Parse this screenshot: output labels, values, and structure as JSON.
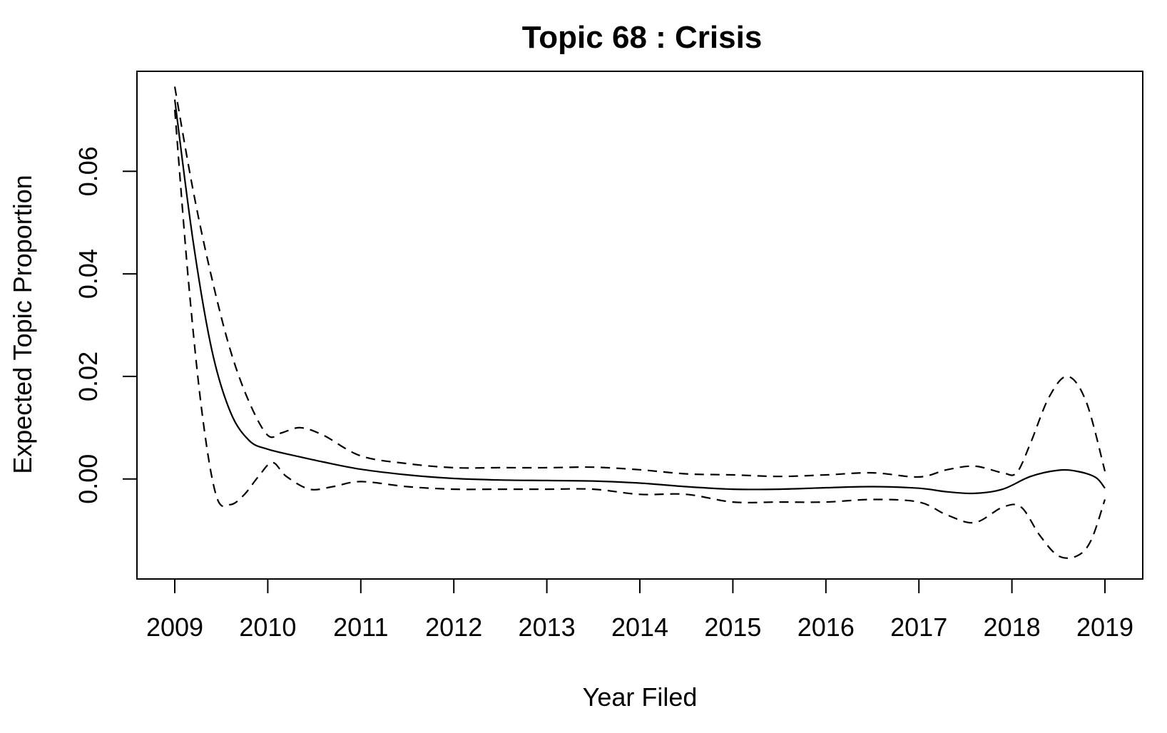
{
  "chart_data": {
    "type": "line",
    "title": "Topic 68 : Crisis",
    "xlabel": "Year Filed",
    "ylabel": "Expected Topic Proportion",
    "xlim": [
      2009,
      2019
    ],
    "ylim": [
      -0.0195,
      0.0795
    ],
    "x_ticks": [
      2009,
      2010,
      2011,
      2012,
      2013,
      2014,
      2015,
      2016,
      2017,
      2018,
      2019
    ],
    "x_tick_labels": [
      "2009",
      "2010",
      "2011",
      "2012",
      "2013",
      "2014",
      "2015",
      "2016",
      "2017",
      "2018",
      "2019"
    ],
    "y_ticks": [
      0.0,
      0.02,
      0.04,
      0.06
    ],
    "y_tick_labels": [
      "0.00",
      "0.02",
      "0.04",
      "0.06"
    ],
    "grid": false,
    "legend": "none",
    "series": [
      {
        "style": "solid",
        "x": [
          2009.0,
          2009.2,
          2009.4,
          2009.6,
          2009.8,
          2010.0,
          2010.3,
          2010.6,
          2011.0,
          2011.5,
          2012.0,
          2012.5,
          2013.0,
          2013.5,
          2014.0,
          2014.5,
          2015.0,
          2015.5,
          2016.0,
          2016.5,
          2017.0,
          2017.3,
          2017.6,
          2017.9,
          2018.2,
          2018.5,
          2018.7,
          2018.9,
          2019.0
        ],
        "values": [
          0.074,
          0.046,
          0.025,
          0.013,
          0.0075,
          0.0058,
          0.0045,
          0.0033,
          0.0019,
          0.0008,
          0.0001,
          -0.0002,
          -0.0003,
          -0.0004,
          -0.0008,
          -0.0015,
          -0.002,
          -0.002,
          -0.0017,
          -0.0015,
          -0.0018,
          -0.0025,
          -0.0028,
          -0.002,
          0.0005,
          0.0017,
          0.0015,
          0.0003,
          -0.0018
        ]
      },
      {
        "style": "dashed",
        "x": [
          2009.0,
          2009.2,
          2009.4,
          2009.6,
          2009.8,
          2010.0,
          2010.15,
          2010.35,
          2010.6,
          2011.0,
          2011.5,
          2012.0,
          2012.5,
          2013.0,
          2013.5,
          2014.0,
          2014.5,
          2015.0,
          2015.5,
          2016.0,
          2016.5,
          2017.0,
          2017.3,
          2017.6,
          2017.9,
          2018.05,
          2018.2,
          2018.4,
          2018.6,
          2018.8,
          2019.0
        ],
        "values": [
          0.0765,
          0.056,
          0.039,
          0.025,
          0.015,
          0.0085,
          0.009,
          0.01,
          0.0085,
          0.0045,
          0.003,
          0.0022,
          0.0022,
          0.0022,
          0.0023,
          0.0018,
          0.001,
          0.0008,
          0.0005,
          0.0008,
          0.0012,
          0.0004,
          0.0018,
          0.0025,
          0.0012,
          0.0012,
          0.007,
          0.016,
          0.02,
          0.015,
          0.0015
        ]
      },
      {
        "style": "dashed",
        "x": [
          2009.0,
          2009.15,
          2009.3,
          2009.45,
          2009.6,
          2009.75,
          2009.9,
          2010.05,
          2010.2,
          2010.45,
          2010.7,
          2011.0,
          2011.5,
          2012.0,
          2012.5,
          2013.0,
          2013.5,
          2014.0,
          2014.5,
          2015.0,
          2015.5,
          2016.0,
          2016.5,
          2017.0,
          2017.3,
          2017.6,
          2017.9,
          2018.1,
          2018.3,
          2018.5,
          2018.7,
          2018.85,
          2019.0
        ],
        "values": [
          0.072,
          0.038,
          0.012,
          -0.0035,
          -0.005,
          -0.003,
          0.0005,
          0.0032,
          0.0005,
          -0.002,
          -0.0015,
          -0.0005,
          -0.0015,
          -0.002,
          -0.002,
          -0.002,
          -0.002,
          -0.003,
          -0.003,
          -0.0045,
          -0.0045,
          -0.0045,
          -0.004,
          -0.0045,
          -0.007,
          -0.0085,
          -0.0055,
          -0.0055,
          -0.011,
          -0.015,
          -0.015,
          -0.012,
          -0.004
        ]
      }
    ]
  }
}
